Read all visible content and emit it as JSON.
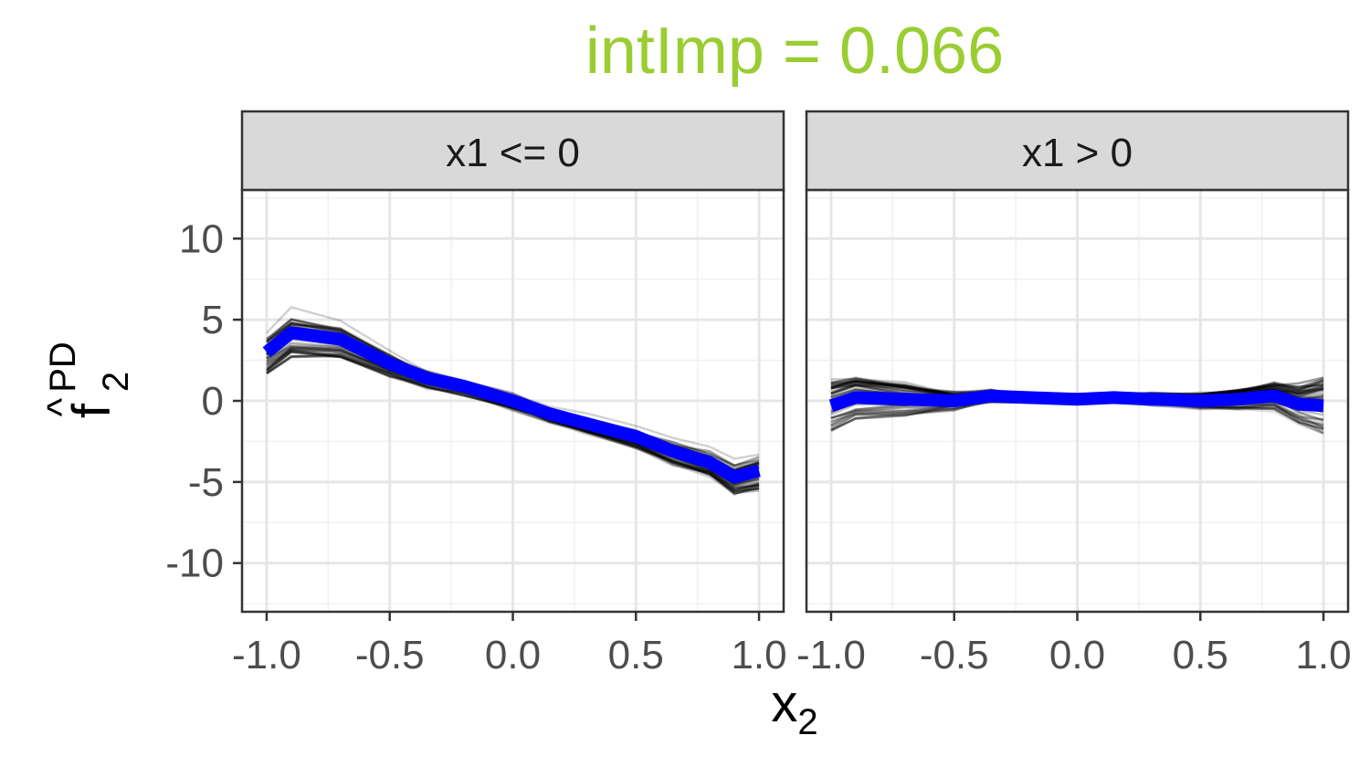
{
  "chart_data": {
    "type": "line",
    "title": "intImp = 0.066",
    "title_color": "#9ACD32",
    "xlabel": {
      "base": "x",
      "sub": "2"
    },
    "ylabel": {
      "hat": "^",
      "base": "f",
      "sub": "2",
      "sup": "PD"
    },
    "xlim": [
      -1.1,
      1.1
    ],
    "ylim": [
      -13,
      13
    ],
    "x_ticks": [
      -1.0,
      -0.5,
      0.0,
      0.5,
      1.0
    ],
    "x_tick_labels": [
      "-1.0",
      "-0.5",
      "0.0",
      "0.5",
      "1.0"
    ],
    "y_ticks": [
      -10,
      -5,
      0,
      5,
      10
    ],
    "y_tick_labels": [
      "-10",
      "-5",
      "0",
      "5",
      "10"
    ],
    "grid": true,
    "mean_color": "#0000FF",
    "ice_color": "#000000",
    "x": [
      -1.0,
      -0.9,
      -0.7,
      -0.5,
      -0.35,
      -0.2,
      0.0,
      0.15,
      0.3,
      0.5,
      0.65,
      0.8,
      0.9,
      1.0
    ],
    "panels": [
      {
        "strip": "x1 <= 0",
        "mean": [
          3.0,
          4.2,
          3.8,
          2.3,
          1.4,
          0.9,
          0.0,
          -0.8,
          -1.4,
          -2.2,
          -3.1,
          -3.8,
          -4.7,
          -4.3
        ],
        "ice_spread": [
          1.4,
          1.6,
          1.2,
          0.8,
          0.6,
          0.5,
          0.5,
          0.5,
          0.6,
          0.7,
          0.8,
          0.9,
          1.1,
          1.2
        ],
        "ice_count": 48
      },
      {
        "strip": "x1 > 0",
        "mean": [
          -0.3,
          0.2,
          0.1,
          0.0,
          0.3,
          0.2,
          0.1,
          0.2,
          0.1,
          0.0,
          0.1,
          0.3,
          -0.2,
          -0.3
        ],
        "ice_spread": [
          1.6,
          1.4,
          1.0,
          0.5,
          0.3,
          0.2,
          0.2,
          0.2,
          0.3,
          0.4,
          0.6,
          0.8,
          1.2,
          1.8
        ],
        "ice_count": 48
      }
    ]
  }
}
